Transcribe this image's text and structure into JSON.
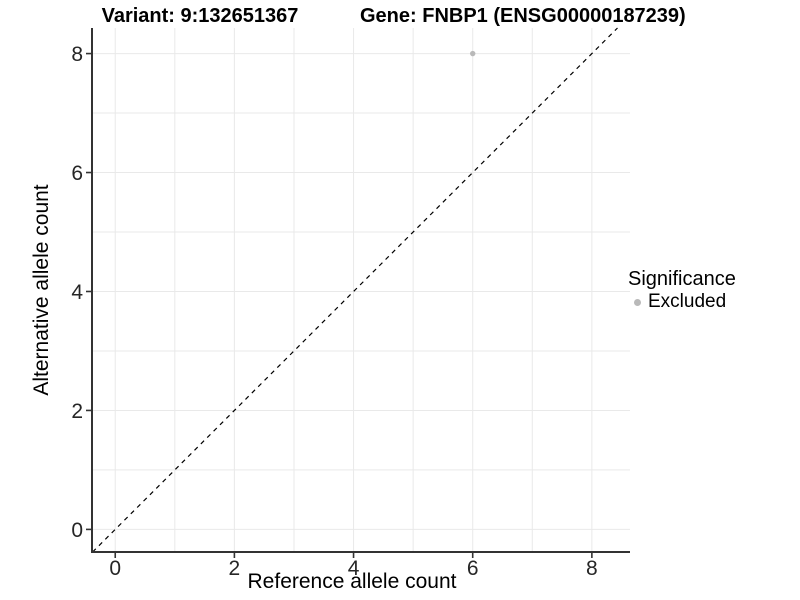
{
  "titles": {
    "variant": "Variant: 9:132651367",
    "gene": "Gene: FNBP1 (ENSG00000187239)"
  },
  "chart_data": {
    "type": "scatter",
    "xlabel": "Reference allele count",
    "ylabel": "Alternative allele count",
    "xlim": [
      -0.39,
      8.64
    ],
    "ylim": [
      -0.38,
      8.43
    ],
    "xticks": [
      0,
      2,
      4,
      6,
      8
    ],
    "yticks": [
      0,
      2,
      4,
      6,
      8
    ],
    "grid_x": [
      0,
      1,
      2,
      3,
      4,
      5,
      6,
      7,
      8
    ],
    "grid_y": [
      0,
      1,
      2,
      3,
      4,
      5,
      6,
      7,
      8
    ],
    "grid_on": true,
    "points": [
      {
        "x": 6,
        "y": 8,
        "significance": "Excluded"
      }
    ],
    "reference_line": {
      "type": "identity",
      "style": "dashed"
    },
    "legend": {
      "title": "Significance",
      "position": "right",
      "entries": [
        {
          "label": "Excluded",
          "color": "#b9b9b9"
        }
      ]
    },
    "colors": {
      "point": "#b9b9b9",
      "grid": "#e9e9e9",
      "axis": "#333333",
      "tick_text": "#262626",
      "line": "#000000"
    }
  }
}
